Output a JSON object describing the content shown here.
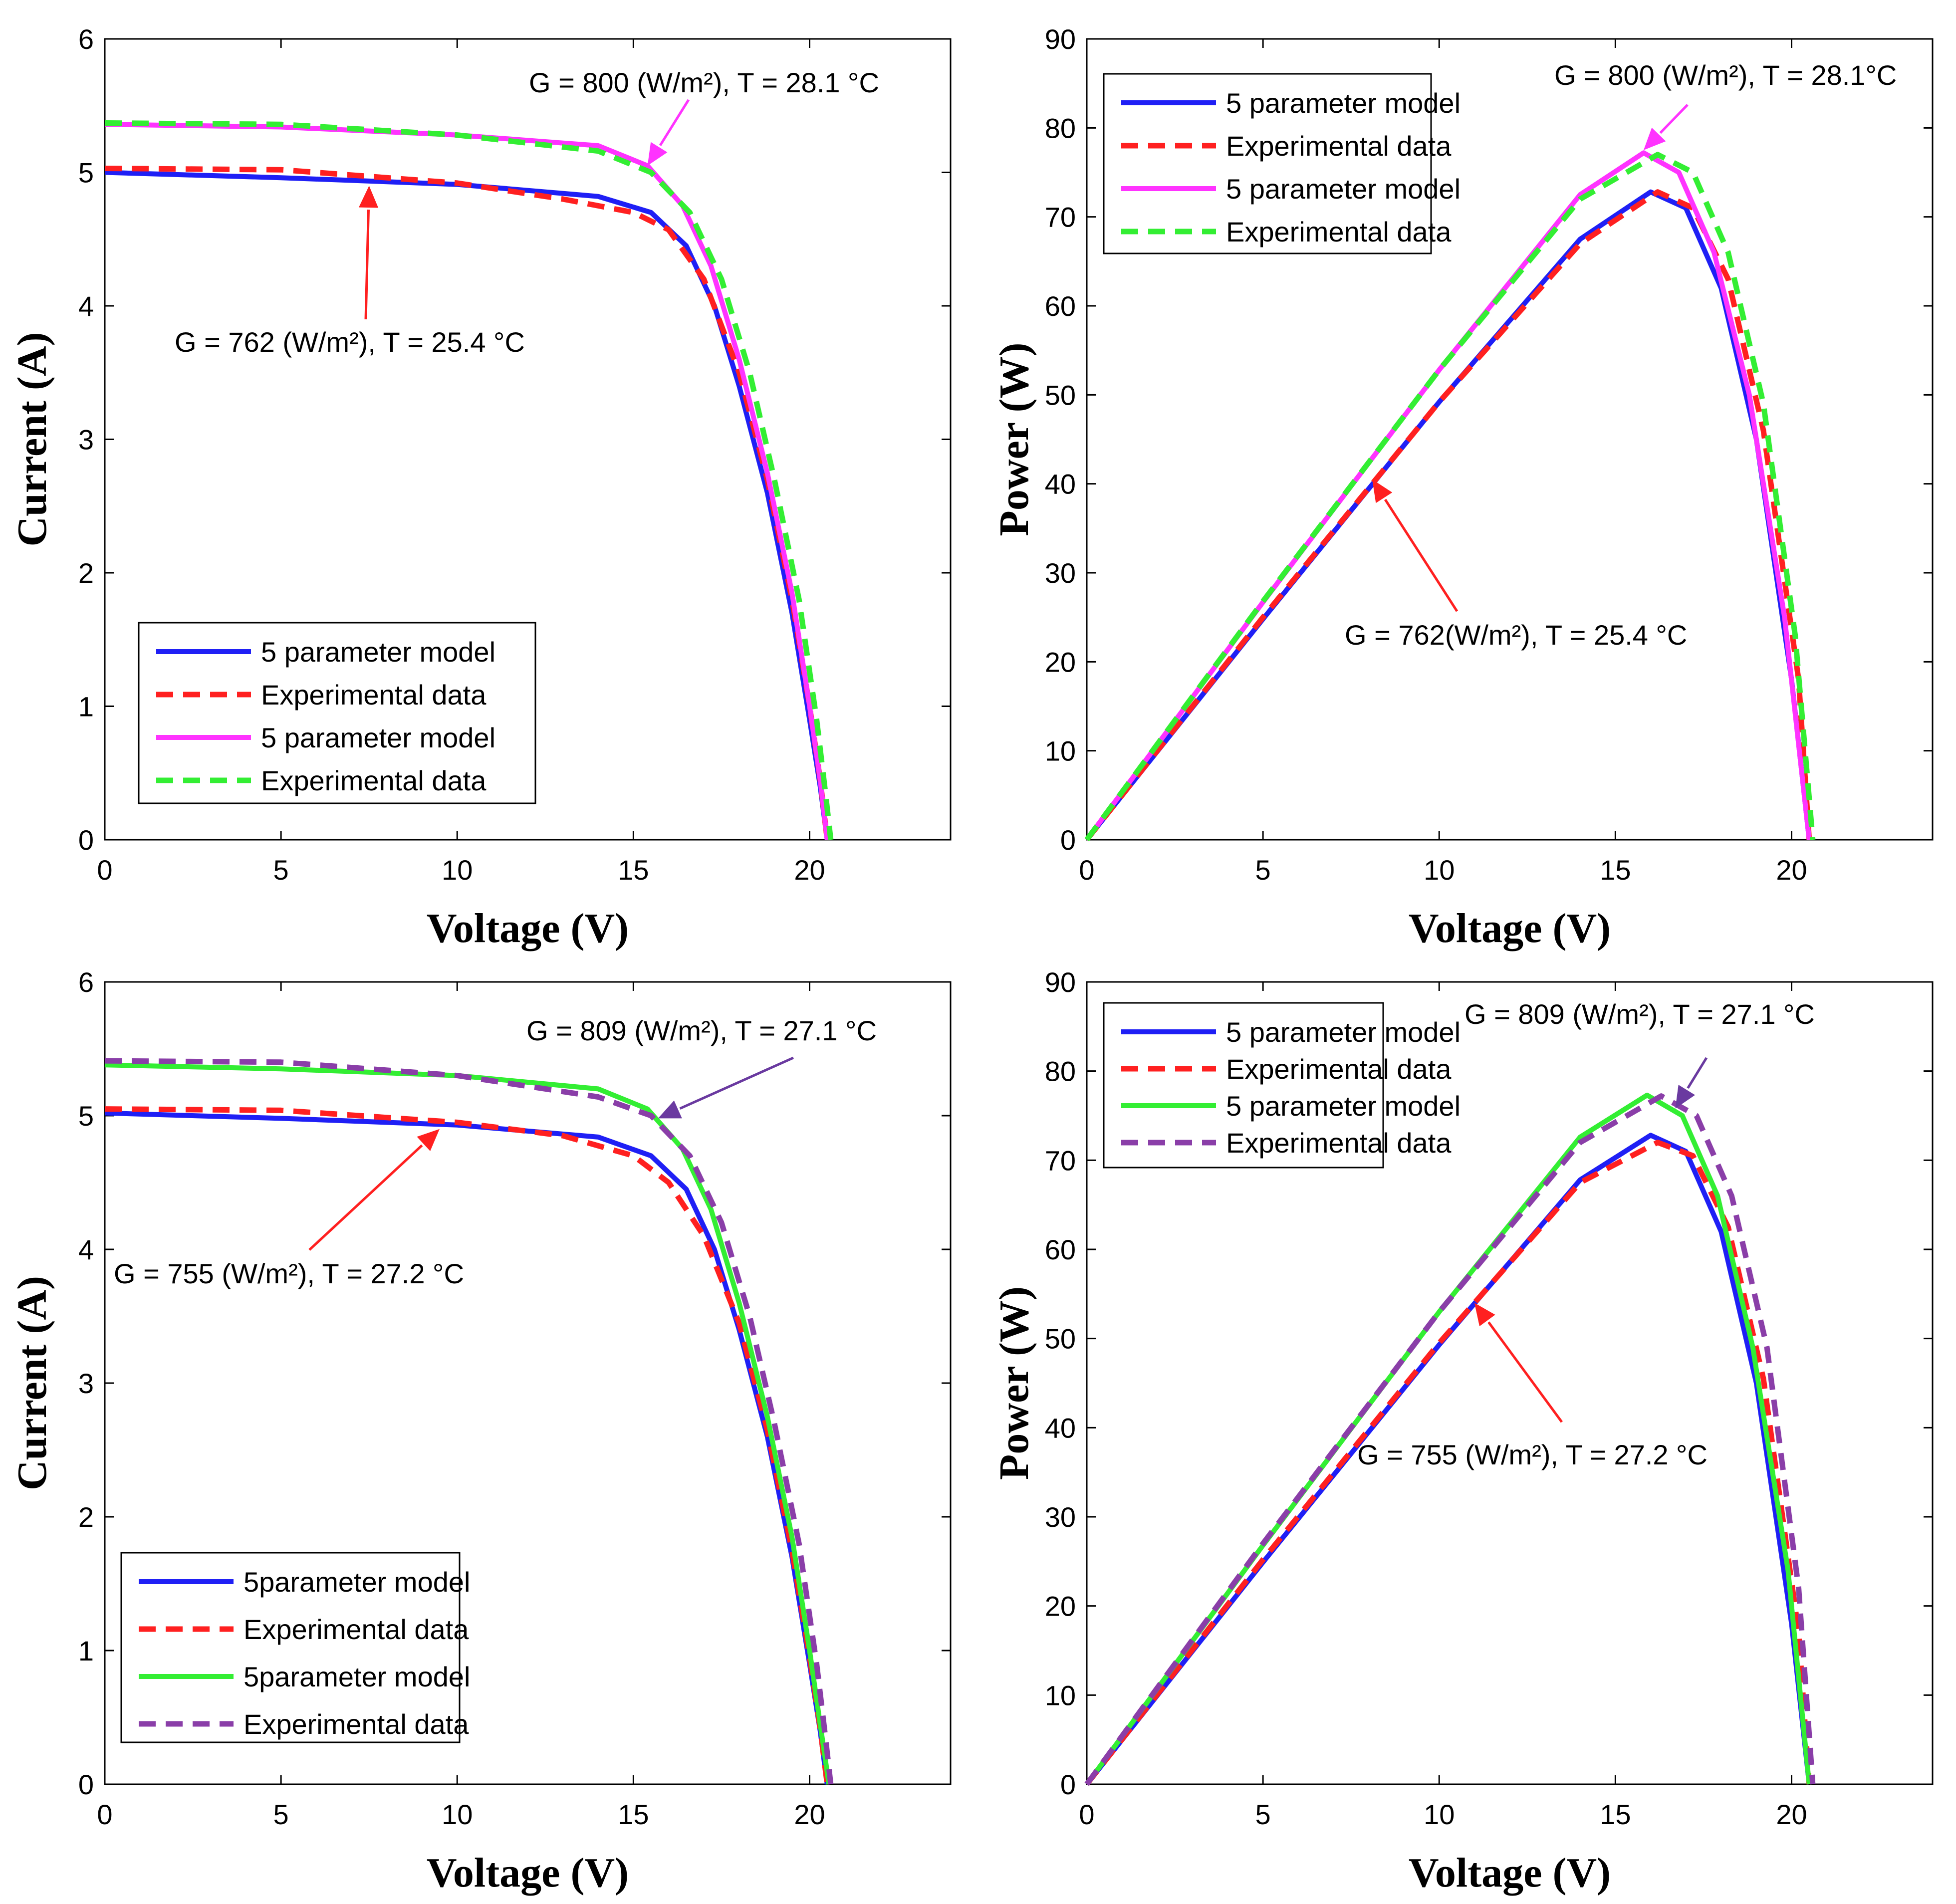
{
  "colors": {
    "blue": "#1f1ff5",
    "red": "#ff2020",
    "magenta": "#ff33ff",
    "green": "#33ee33",
    "purple": "#8a3ea8",
    "violet": "#6a3aa0"
  },
  "chart_data": [
    {
      "type": "line",
      "xlabel": "Voltage (V)",
      "ylabel": "Current (A)",
      "xlim": [
        0,
        24
      ],
      "ylim": [
        0,
        6
      ],
      "xticks": [
        "0",
        "5",
        "10",
        "15",
        "20"
      ],
      "yticks": [
        "0",
        "1",
        "2",
        "3",
        "4",
        "5",
        "6"
      ],
      "legend": [
        "5 parameter model",
        "Experimental data",
        "5 parameter model",
        "Experimental data"
      ],
      "annotations": [
        {
          "text": "G = 800 (W/m²), T = 28.1 °C",
          "color": "magenta",
          "x_data": 15.4,
          "y_data": 5.05
        },
        {
          "text": "G = 762 (W/m²), T = 25.4 °C",
          "color": "red",
          "x_data": 7.5,
          "y_data": 4.9
        }
      ],
      "series": [
        {
          "name": "5 parameter model",
          "color": "blue",
          "dash": false,
          "points": [
            [
              0,
              5.0
            ],
            [
              5,
              4.96
            ],
            [
              10,
              4.91
            ],
            [
              14,
              4.82
            ],
            [
              15.5,
              4.7
            ],
            [
              16.5,
              4.45
            ],
            [
              17.3,
              4.0
            ],
            [
              18,
              3.4
            ],
            [
              18.8,
              2.6
            ],
            [
              19.5,
              1.7
            ],
            [
              20,
              0.9
            ],
            [
              20.3,
              0.4
            ],
            [
              20.5,
              0
            ]
          ]
        },
        {
          "name": "Experimental data",
          "color": "red",
          "dash": true,
          "points": [
            [
              0,
              5.03
            ],
            [
              5,
              5.02
            ],
            [
              10,
              4.92
            ],
            [
              13,
              4.8
            ],
            [
              15,
              4.7
            ],
            [
              16,
              4.57
            ],
            [
              17,
              4.2
            ],
            [
              18,
              3.5
            ],
            [
              18.8,
              2.7
            ],
            [
              19.5,
              1.8
            ],
            [
              20,
              1.0
            ],
            [
              20.3,
              0.45
            ],
            [
              20.5,
              0
            ]
          ]
        },
        {
          "name": "5 parameter model",
          "color": "magenta",
          "dash": false,
          "points": [
            [
              0,
              5.36
            ],
            [
              5,
              5.34
            ],
            [
              10,
              5.28
            ],
            [
              14,
              5.2
            ],
            [
              15.4,
              5.05
            ],
            [
              16.4,
              4.75
            ],
            [
              17.2,
              4.3
            ],
            [
              18,
              3.6
            ],
            [
              18.8,
              2.75
            ],
            [
              19.5,
              1.85
            ],
            [
              20,
              1.0
            ],
            [
              20.3,
              0.45
            ],
            [
              20.5,
              0
            ]
          ]
        },
        {
          "name": "Experimental data",
          "color": "green",
          "dash": true,
          "points": [
            [
              0,
              5.37
            ],
            [
              5,
              5.36
            ],
            [
              10,
              5.28
            ],
            [
              14,
              5.16
            ],
            [
              15.5,
              5.0
            ],
            [
              16.6,
              4.7
            ],
            [
              17.5,
              4.2
            ],
            [
              18.3,
              3.5
            ],
            [
              19,
              2.7
            ],
            [
              19.7,
              1.8
            ],
            [
              20.2,
              0.9
            ],
            [
              20.45,
              0.35
            ],
            [
              20.6,
              0
            ]
          ]
        }
      ]
    },
    {
      "type": "line",
      "xlabel": "Voltage (V)",
      "ylabel": "Power (W)",
      "xlim": [
        0,
        24
      ],
      "ylim": [
        0,
        90
      ],
      "xticks": [
        "0",
        "5",
        "10",
        "15",
        "20"
      ],
      "yticks": [
        "0",
        "10",
        "20",
        "30",
        "40",
        "50",
        "60",
        "70",
        "80",
        "90"
      ],
      "legend": [
        "5 parameter model",
        "Experimental data",
        "5 parameter model",
        "Experimental data"
      ],
      "annotations": [
        {
          "text": "G = 800 (W/m²), T = 28.1°C",
          "color": "magenta",
          "x_data": 15.8,
          "y_data": 77.5
        },
        {
          "text": "G = 762(W/m²), T = 25.4 °C",
          "color": "red",
          "x_data": 8.1,
          "y_data": 40.5
        }
      ],
      "series": [
        {
          "name": "5 parameter model",
          "color": "blue",
          "dash": false,
          "points": [
            [
              0,
              0
            ],
            [
              5,
              24.8
            ],
            [
              10,
              49.2
            ],
            [
              14,
              67.5
            ],
            [
              16,
              72.8
            ],
            [
              17,
              71
            ],
            [
              18,
              62
            ],
            [
              19,
              45
            ],
            [
              20,
              18
            ],
            [
              20.5,
              0
            ]
          ]
        },
        {
          "name": "Experimental data",
          "color": "red",
          "dash": true,
          "points": [
            [
              0,
              0
            ],
            [
              5,
              25
            ],
            [
              10,
              49.2
            ],
            [
              14,
              67
            ],
            [
              16.2,
              72.8
            ],
            [
              17.2,
              71
            ],
            [
              18.2,
              63
            ],
            [
              19.2,
              46
            ],
            [
              20.2,
              18
            ],
            [
              20.5,
              0
            ]
          ]
        },
        {
          "name": "5 parameter model",
          "color": "magenta",
          "dash": false,
          "points": [
            [
              0,
              0
            ],
            [
              5,
              26.7
            ],
            [
              10,
              52.8
            ],
            [
              14,
              72.5
            ],
            [
              15.8,
              77.2
            ],
            [
              16.8,
              75
            ],
            [
              17.8,
              66
            ],
            [
              18.8,
              50
            ],
            [
              19.8,
              25
            ],
            [
              20.5,
              0
            ]
          ]
        },
        {
          "name": "Experimental data",
          "color": "green",
          "dash": true,
          "points": [
            [
              0,
              0
            ],
            [
              5,
              26.8
            ],
            [
              10,
              52.8
            ],
            [
              14,
              72
            ],
            [
              16.2,
              77
            ],
            [
              17.2,
              75
            ],
            [
              18.2,
              66
            ],
            [
              19.2,
              49
            ],
            [
              20.1,
              23
            ],
            [
              20.6,
              0
            ]
          ]
        }
      ]
    },
    {
      "type": "line",
      "xlabel": "Voltage (V)",
      "ylabel": "Current (A)",
      "xlim": [
        0,
        24
      ],
      "ylim": [
        0,
        6
      ],
      "xticks": [
        "0",
        "5",
        "10",
        "15",
        "20"
      ],
      "yticks": [
        "0",
        "1",
        "2",
        "3",
        "4",
        "5",
        "6"
      ],
      "legend": [
        "5parameter model",
        "Experimental data",
        "5parameter model",
        "Experimental data"
      ],
      "annotations": [
        {
          "text": "G = 809 (W/m²), T = 27.1 °C",
          "color": "violet",
          "x_data": 15.7,
          "y_data": 4.98
        },
        {
          "text": "G = 755 (W/m²), T = 27.2 °C",
          "color": "red",
          "x_data": 9.5,
          "y_data": 4.9
        }
      ],
      "series": [
        {
          "name": "5parameter model",
          "color": "blue",
          "dash": false,
          "points": [
            [
              0,
              5.02
            ],
            [
              5,
              4.98
            ],
            [
              10,
              4.93
            ],
            [
              14,
              4.84
            ],
            [
              15.5,
              4.7
            ],
            [
              16.5,
              4.45
            ],
            [
              17.3,
              4.0
            ],
            [
              18,
              3.4
            ],
            [
              18.8,
              2.6
            ],
            [
              19.5,
              1.7
            ],
            [
              20,
              0.9
            ],
            [
              20.3,
              0.4
            ],
            [
              20.5,
              0
            ]
          ]
        },
        {
          "name": "Experimental data",
          "color": "red",
          "dash": true,
          "points": [
            [
              0,
              5.05
            ],
            [
              5,
              5.04
            ],
            [
              10,
              4.95
            ],
            [
              13,
              4.85
            ],
            [
              15,
              4.7
            ],
            [
              16,
              4.5
            ],
            [
              17,
              4.1
            ],
            [
              18,
              3.45
            ],
            [
              18.8,
              2.65
            ],
            [
              19.5,
              1.75
            ],
            [
              20,
              0.95
            ],
            [
              20.3,
              0.42
            ],
            [
              20.5,
              0
            ]
          ]
        },
        {
          "name": "5parameter model",
          "color": "green",
          "dash": false,
          "points": [
            [
              0,
              5.38
            ],
            [
              5,
              5.35
            ],
            [
              10,
              5.3
            ],
            [
              14,
              5.2
            ],
            [
              15.4,
              5.05
            ],
            [
              16.4,
              4.75
            ],
            [
              17.2,
              4.3
            ],
            [
              18,
              3.6
            ],
            [
              18.8,
              2.75
            ],
            [
              19.5,
              1.85
            ],
            [
              20,
              1.0
            ],
            [
              20.3,
              0.45
            ],
            [
              20.55,
              0
            ]
          ]
        },
        {
          "name": "Experimental data",
          "color": "purple",
          "dash": true,
          "points": [
            [
              0,
              5.41
            ],
            [
              5,
              5.4
            ],
            [
              10,
              5.3
            ],
            [
              14,
              5.14
            ],
            [
              15.5,
              5.0
            ],
            [
              16.6,
              4.7
            ],
            [
              17.5,
              4.2
            ],
            [
              18.3,
              3.5
            ],
            [
              19,
              2.7
            ],
            [
              19.7,
              1.8
            ],
            [
              20.2,
              0.9
            ],
            [
              20.45,
              0.35
            ],
            [
              20.6,
              0
            ]
          ]
        }
      ]
    },
    {
      "type": "line",
      "xlabel": "Voltage (V)",
      "ylabel": "Power (W)",
      "xlim": [
        0,
        24
      ],
      "ylim": [
        0,
        90
      ],
      "xticks": [
        "0",
        "5",
        "10",
        "15",
        "20"
      ],
      "yticks": [
        "0",
        "10",
        "20",
        "30",
        "40",
        "50",
        "60",
        "70",
        "80",
        "90"
      ],
      "legend": [
        "5 parameter model",
        "Experimental data",
        "5 parameter model",
        "Experimental data"
      ],
      "annotations": [
        {
          "text": "G = 809 (W/m²), T = 27.1 °C",
          "color": "violet",
          "x_data": 16.7,
          "y_data": 75.8
        },
        {
          "text": "G = 755 (W/m²), T = 27.2 °C",
          "color": "red",
          "x_data": 11.0,
          "y_data": 54
        }
      ],
      "series": [
        {
          "name": "5 parameter model",
          "color": "blue",
          "dash": false,
          "points": [
            [
              0,
              0
            ],
            [
              5,
              24.9
            ],
            [
              10,
              49.3
            ],
            [
              14,
              67.8
            ],
            [
              16,
              72.8
            ],
            [
              17,
              71
            ],
            [
              18,
              62
            ],
            [
              19,
              45
            ],
            [
              20,
              18
            ],
            [
              20.5,
              0
            ]
          ]
        },
        {
          "name": "Experimental data",
          "color": "red",
          "dash": true,
          "points": [
            [
              0,
              0
            ],
            [
              5,
              25.2
            ],
            [
              10,
              49.5
            ],
            [
              14,
              67.5
            ],
            [
              16.2,
              72
            ],
            [
              17.2,
              70.5
            ],
            [
              18.2,
              62.5
            ],
            [
              19.2,
              45.5
            ],
            [
              20.2,
              17
            ],
            [
              20.5,
              0
            ]
          ]
        },
        {
          "name": "5 parameter model",
          "color": "green",
          "dash": false,
          "points": [
            [
              0,
              0
            ],
            [
              5,
              26.8
            ],
            [
              10,
              53
            ],
            [
              14,
              72.6
            ],
            [
              15.9,
              77.3
            ],
            [
              16.9,
              75
            ],
            [
              17.9,
              66
            ],
            [
              18.9,
              49
            ],
            [
              19.9,
              24
            ],
            [
              20.5,
              0
            ]
          ]
        },
        {
          "name": "Experimental data",
          "color": "purple",
          "dash": true,
          "points": [
            [
              0,
              0
            ],
            [
              5,
              27
            ],
            [
              10,
              53
            ],
            [
              14,
              72
            ],
            [
              16.3,
              77.2
            ],
            [
              17.3,
              75
            ],
            [
              18.3,
              66
            ],
            [
              19.3,
              49
            ],
            [
              20.2,
              22
            ],
            [
              20.6,
              0
            ]
          ]
        }
      ]
    }
  ]
}
